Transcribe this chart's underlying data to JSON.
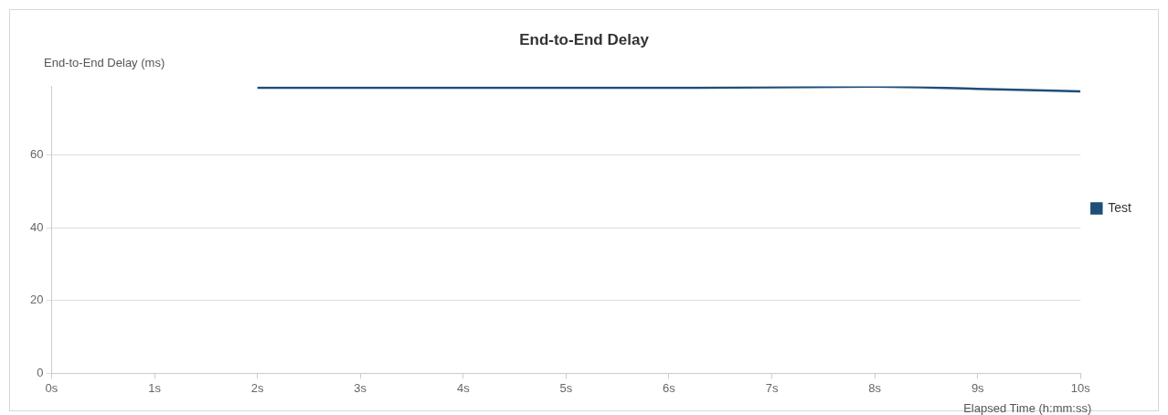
{
  "chart_data": {
    "type": "line",
    "title": "End-to-End Delay",
    "ylabel": "End-to-End Delay (ms)",
    "xlabel": "Elapsed Time (h:mm:ss)",
    "x": [
      2,
      3,
      4,
      5,
      6,
      7,
      8,
      9,
      10
    ],
    "series": [
      {
        "name": "Test",
        "color": "#1f4e79",
        "values": [
          78.6,
          78.6,
          78.6,
          78.6,
          78.6,
          78.7,
          78.9,
          78.3,
          77.6
        ]
      }
    ],
    "xlim": [
      0,
      10
    ],
    "xticks": [
      {
        "value": 0,
        "label": "0s"
      },
      {
        "value": 1,
        "label": "1s"
      },
      {
        "value": 2,
        "label": "2s"
      },
      {
        "value": 3,
        "label": "3s"
      },
      {
        "value": 4,
        "label": "4s"
      },
      {
        "value": 5,
        "label": "5s"
      },
      {
        "value": 6,
        "label": "6s"
      },
      {
        "value": 7,
        "label": "7s"
      },
      {
        "value": 8,
        "label": "8s"
      },
      {
        "value": 9,
        "label": "9s"
      },
      {
        "value": 10,
        "label": "10s"
      }
    ],
    "ylim": [
      0,
      79
    ],
    "yticks": [
      0,
      20,
      40,
      60
    ],
    "grid": "y",
    "legend": "right",
    "marker": "none",
    "line_style": "solid"
  }
}
